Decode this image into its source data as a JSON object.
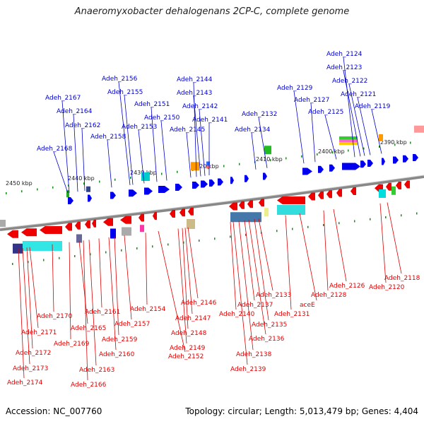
{
  "title": "Anaeromyxobacter dehalogenans 2CP-C, complete genome",
  "footer": {
    "accession": "Accession: NC_007760",
    "summary": "Topology: circular; Length: 5,013,479 bp; Genes: 4,404"
  },
  "colors": {
    "forward_label": "#0000cc",
    "reverse_label": "#dd0000",
    "backbone": "#888888",
    "forward_gene": "#0000ee",
    "reverse_gene": "#ee0000"
  },
  "scale_labels": [
    "2450 kbp",
    "2440 kbp",
    "2430 kbp",
    "2420 kbp",
    "2410 kbp",
    "2400 kbp",
    "2390 kbp"
  ],
  "forward_genes": [
    "Adeh_2168",
    "Adeh_2167",
    "Adeh_2164",
    "Adeh_2162",
    "Adeh_2158",
    "Adeh_2156",
    "Adeh_2155",
    "Adeh_2153",
    "Adeh_2151",
    "Adeh_2150",
    "Adeh_2145",
    "Adeh_2144",
    "Adeh_2143",
    "Adeh_2142",
    "Adeh_2141",
    "Adeh_2134",
    "Adeh_2132",
    "Adeh_2129",
    "Adeh_2127",
    "Adeh_2125",
    "Adeh_2124",
    "Adeh_2123",
    "Adeh_2122",
    "Adeh_2121",
    "Adeh_2119"
  ],
  "reverse_genes": [
    "Adeh_2174",
    "Adeh_2173",
    "Adeh_2172",
    "Adeh_2171",
    "Adeh_2170",
    "Adeh_2169",
    "Adeh_2166",
    "Adeh_2165",
    "Adeh_2163",
    "Adeh_2161",
    "Adeh_2160",
    "Adeh_2159",
    "Adeh_2157",
    "Adeh_2154",
    "Adeh_2152",
    "Adeh_2149",
    "Adeh_2148",
    "Adeh_2147",
    "Adeh_2146",
    "Adeh_2140",
    "Adeh_2139",
    "Adeh_2138",
    "Adeh_2137",
    "Adeh_2136",
    "Adeh_2135",
    "Adeh_2133",
    "Adeh_2131",
    "aceE",
    "Adeh_2128",
    "Adeh_2126",
    "Adeh_2120",
    "Adeh_2118"
  ]
}
